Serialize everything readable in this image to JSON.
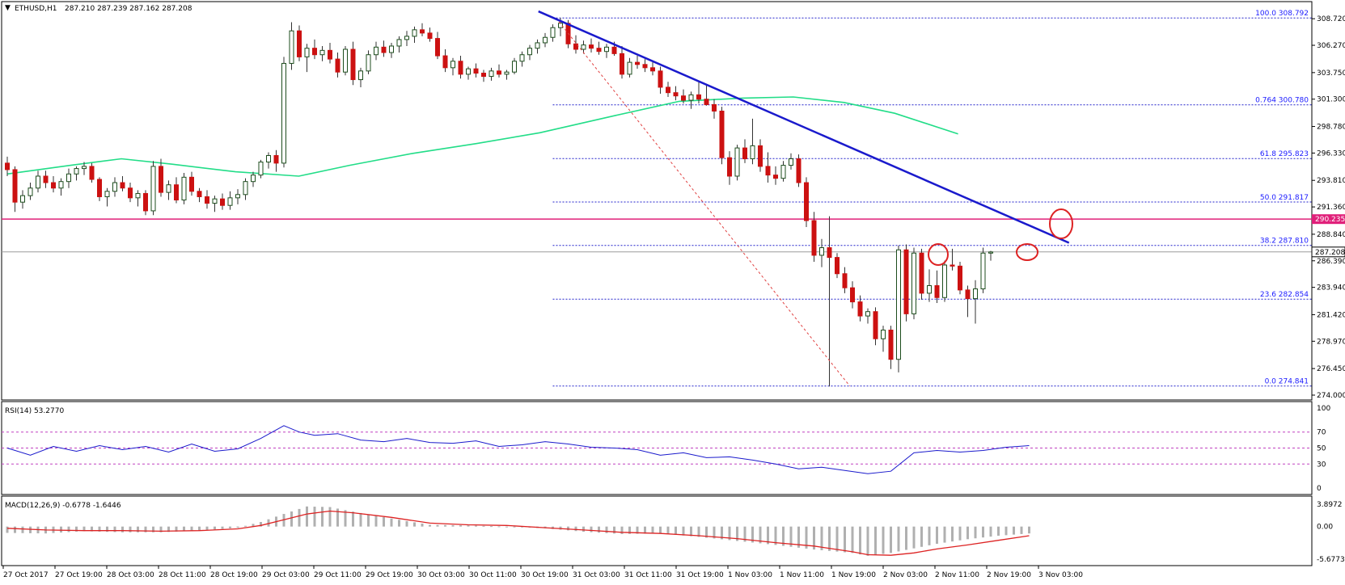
{
  "header": {
    "symbol_timeframe": "ETHUSD,H1",
    "ohlc": "287.210 287.239 287.162 287.208"
  },
  "price_axis": {
    "ticks": [
      "308.720",
      "306.270",
      "303.750",
      "301.300",
      "298.780",
      "296.330",
      "293.810",
      "291.360",
      "288.840",
      "286.390",
      "283.940",
      "281.420",
      "278.970",
      "276.450",
      "274.000"
    ],
    "current_price": "287.208",
    "resistance_price": "290.235"
  },
  "time_axis": [
    "27 Oct 2017",
    "27 Oct 19:00",
    "28 Oct 03:00",
    "28 Oct 11:00",
    "28 Oct 19:00",
    "29 Oct 03:00",
    "29 Oct 11:00",
    "29 Oct 19:00",
    "30 Oct 03:00",
    "30 Oct 11:00",
    "30 Oct 19:00",
    "31 Oct 03:00",
    "31 Oct 11:00",
    "31 Oct 19:00",
    "1 Nov 03:00",
    "1 Nov 11:00",
    "1 Nov 19:00",
    "2 Nov 03:00",
    "2 Nov 11:00",
    "2 Nov 19:00",
    "3 Nov 03:00"
  ],
  "fib_levels": [
    {
      "label": "100.0",
      "value": "308.792"
    },
    {
      "label": "0.764",
      "value": "300.780"
    },
    {
      "label": "61.8",
      "value": "295.823"
    },
    {
      "label": "50.0",
      "value": "291.817"
    },
    {
      "label": "38.2",
      "value": "287.810"
    },
    {
      "label": "23.6",
      "value": "282.854"
    },
    {
      "label": "0.0",
      "value": "274.841"
    }
  ],
  "rsi": {
    "label": "RSI(14) 53.2770",
    "ticks": [
      "100",
      "70",
      "50",
      "30",
      "0"
    ]
  },
  "macd": {
    "label": "MACD(12,26,9) -0.6778 -1.6446",
    "ticks": [
      "3.8972",
      "0.00",
      "-5.6773"
    ]
  },
  "colors": {
    "bull": "#2e6b2e",
    "bear": "#cc1111",
    "ma": "#22dd88",
    "trendline": "#1a1acc",
    "fib": "#2222cc",
    "resistance": "#e0207a",
    "circle": "#dd2222",
    "rsi_line": "#1a1acc",
    "macd_signal": "#dd2222",
    "macd_hist": "#b0b0b0"
  },
  "chart_data": {
    "type": "candlestick",
    "main": {
      "ylim": [
        274.0,
        310.0
      ],
      "resistance": 290.235,
      "current": 287.208,
      "trendline": {
        "from": [
          31,
          309.4
        ],
        "to": [
          98,
          288.05
        ]
      },
      "fib_dashed": {
        "from": [
          34,
          308.792
        ],
        "to": [
          51,
          274.841
        ]
      },
      "highlight_circles": [
        {
          "x": 62.5,
          "y": 290.1
        },
        {
          "x": 55,
          "y": 287.8
        },
        {
          "x": 74,
          "y": 287.8
        }
      ],
      "ma_x": [
        0,
        5,
        9,
        13,
        18,
        23,
        27,
        32,
        37,
        42,
        48,
        53,
        58,
        62,
        66,
        70,
        75
      ],
      "ma_y": [
        294.4,
        295.2,
        295.8,
        295.3,
        294.6,
        294.2,
        295.2,
        296.3,
        297.2,
        298.2,
        299.8,
        301.1,
        301.4,
        301.5,
        301.0,
        300.0,
        298.1
      ],
      "candles": [
        [
          295.4,
          296.0,
          294.2,
          294.8
        ],
        [
          294.8,
          295.1,
          290.9,
          291.8
        ],
        [
          291.8,
          292.9,
          291.2,
          292.4
        ],
        [
          292.4,
          293.6,
          292.0,
          293.1
        ],
        [
          293.1,
          294.7,
          292.7,
          294.2
        ],
        [
          294.2,
          294.7,
          293.1,
          293.6
        ],
        [
          293.6,
          294.2,
          292.7,
          293.1
        ],
        [
          293.1,
          294.0,
          292.4,
          293.7
        ],
        [
          293.7,
          294.9,
          293.1,
          294.4
        ],
        [
          294.4,
          295.1,
          293.8,
          294.9
        ],
        [
          294.9,
          295.5,
          294.3,
          295.1
        ],
        [
          295.1,
          295.4,
          293.6,
          293.9
        ],
        [
          293.9,
          294.1,
          291.9,
          292.3
        ],
        [
          292.3,
          293.1,
          291.4,
          292.8
        ],
        [
          292.8,
          294.1,
          292.3,
          293.6
        ],
        [
          293.6,
          294.2,
          292.8,
          293.1
        ],
        [
          293.1,
          293.6,
          291.8,
          292.2
        ],
        [
          292.2,
          292.9,
          291.4,
          292.6
        ],
        [
          292.6,
          292.9,
          290.6,
          291.0
        ],
        [
          291.0,
          295.6,
          290.6,
          295.1
        ],
        [
          295.1,
          295.8,
          292.3,
          292.7
        ],
        [
          292.7,
          293.8,
          292.0,
          293.4
        ],
        [
          293.4,
          294.1,
          291.7,
          292.0
        ],
        [
          292.0,
          294.5,
          291.6,
          294.1
        ],
        [
          294.1,
          294.6,
          292.4,
          292.8
        ],
        [
          292.8,
          293.1,
          291.8,
          292.3
        ],
        [
          292.3,
          292.9,
          291.2,
          291.7
        ],
        [
          291.7,
          292.4,
          290.9,
          292.1
        ],
        [
          292.1,
          292.6,
          291.1,
          291.5
        ],
        [
          291.5,
          292.8,
          291.1,
          292.2
        ],
        [
          292.2,
          293.0,
          291.6,
          292.5
        ],
        [
          292.5,
          294.0,
          292.0,
          293.7
        ],
        [
          293.7,
          294.6,
          293.2,
          294.3
        ],
        [
          294.3,
          295.7,
          294.0,
          295.5
        ],
        [
          295.5,
          296.4,
          294.9,
          296.1
        ],
        [
          296.1,
          296.6,
          294.6,
          295.4
        ],
        [
          295.4,
          305.2,
          295.0,
          304.6
        ],
        [
          304.6,
          308.4,
          304.0,
          307.6
        ],
        [
          307.6,
          308.1,
          304.8,
          305.2
        ],
        [
          305.2,
          306.4,
          303.8,
          306.0
        ],
        [
          306.0,
          306.8,
          305.0,
          305.4
        ],
        [
          305.4,
          306.2,
          304.8,
          305.8
        ],
        [
          305.8,
          306.5,
          304.6,
          305.0
        ],
        [
          305.0,
          305.6,
          303.3,
          303.8
        ],
        [
          303.8,
          306.2,
          303.5,
          305.9
        ],
        [
          305.9,
          306.6,
          302.6,
          303.1
        ],
        [
          303.1,
          304.2,
          302.4,
          303.9
        ],
        [
          303.9,
          305.8,
          303.6,
          305.4
        ],
        [
          305.4,
          306.6,
          304.9,
          306.1
        ],
        [
          306.1,
          306.7,
          305.2,
          305.6
        ],
        [
          305.6,
          306.5,
          305.1,
          306.2
        ],
        [
          306.2,
          307.1,
          305.6,
          306.8
        ],
        [
          306.8,
          307.6,
          306.2,
          307.1
        ],
        [
          307.1,
          308.0,
          306.5,
          307.7
        ],
        [
          307.7,
          308.3,
          307.1,
          307.4
        ],
        [
          307.4,
          307.9,
          306.6,
          306.9
        ],
        [
          306.9,
          307.5,
          305.0,
          305.3
        ],
        [
          305.3,
          305.9,
          303.8,
          304.2
        ],
        [
          304.2,
          305.1,
          303.5,
          304.8
        ],
        [
          304.8,
          305.3,
          303.2,
          303.6
        ],
        [
          303.6,
          304.3,
          303.1,
          304.1
        ],
        [
          304.1,
          304.6,
          303.3,
          303.7
        ],
        [
          303.7,
          304.0,
          302.9,
          303.4
        ],
        [
          303.4,
          304.2,
          303.0,
          303.9
        ],
        [
          303.9,
          304.5,
          303.3,
          303.6
        ],
        [
          303.6,
          304.0,
          303.1,
          303.8
        ],
        [
          303.8,
          305.1,
          303.6,
          304.8
        ],
        [
          304.8,
          305.7,
          304.3,
          305.4
        ],
        [
          305.4,
          306.3,
          304.9,
          306.0
        ],
        [
          306.0,
          306.8,
          305.5,
          306.5
        ],
        [
          306.5,
          307.4,
          306.1,
          307.0
        ],
        [
          307.0,
          308.2,
          306.6,
          307.9
        ],
        [
          307.9,
          308.8,
          307.1,
          308.3
        ],
        [
          308.3,
          308.6,
          306.0,
          306.4
        ],
        [
          306.4,
          307.2,
          305.5,
          305.9
        ],
        [
          305.9,
          306.7,
          305.5,
          306.3
        ],
        [
          306.3,
          306.9,
          305.6,
          306.0
        ],
        [
          306.0,
          306.6,
          305.4,
          305.7
        ],
        [
          305.7,
          306.4,
          305.1,
          306.1
        ],
        [
          306.1,
          306.6,
          305.3,
          305.5
        ],
        [
          305.5,
          306.2,
          303.2,
          303.6
        ],
        [
          303.6,
          305.1,
          303.3,
          304.7
        ],
        [
          304.7,
          305.3,
          304.1,
          304.5
        ],
        [
          304.5,
          305.0,
          303.8,
          304.2
        ],
        [
          304.2,
          304.7,
          303.5,
          303.9
        ],
        [
          303.9,
          304.3,
          301.8,
          302.4
        ],
        [
          302.4,
          302.9,
          301.5,
          301.9
        ],
        [
          301.9,
          302.5,
          301.2,
          301.6
        ],
        [
          301.6,
          302.2,
          300.9,
          301.2
        ],
        [
          301.2,
          302.0,
          300.4,
          301.7
        ],
        [
          301.7,
          302.9,
          300.9,
          301.3
        ],
        [
          301.3,
          302.6,
          300.7,
          300.8
        ],
        [
          300.8,
          301.3,
          299.5,
          300.2
        ],
        [
          300.2,
          300.6,
          295.3,
          295.9
        ],
        [
          295.9,
          296.5,
          293.4,
          294.2
        ],
        [
          294.2,
          297.1,
          293.8,
          296.8
        ],
        [
          296.8,
          297.6,
          295.4,
          295.8
        ],
        [
          295.8,
          299.5,
          295.3,
          297.0
        ],
        [
          297.0,
          297.6,
          294.6,
          295.1
        ],
        [
          295.1,
          296.4,
          293.6,
          294.3
        ],
        [
          294.3,
          295.1,
          293.4,
          294.0
        ],
        [
          294.0,
          295.6,
          293.7,
          295.2
        ],
        [
          295.2,
          296.3,
          294.8,
          295.8
        ],
        [
          295.8,
          296.2,
          293.2,
          293.6
        ],
        [
          293.6,
          294.1,
          289.5,
          290.1
        ],
        [
          290.1,
          290.9,
          286.3,
          286.9
        ],
        [
          286.9,
          288.4,
          285.8,
          287.6
        ],
        [
          287.6,
          290.5,
          274.8,
          286.7
        ],
        [
          286.7,
          287.1,
          284.8,
          285.2
        ],
        [
          285.2,
          285.8,
          283.4,
          283.9
        ],
        [
          283.9,
          284.5,
          282.0,
          282.6
        ],
        [
          282.6,
          283.2,
          280.8,
          281.3
        ],
        [
          281.3,
          282.0,
          280.6,
          281.7
        ],
        [
          281.7,
          282.1,
          278.6,
          279.2
        ],
        [
          279.2,
          280.4,
          278.0,
          280.0
        ],
        [
          280.0,
          280.4,
          276.4,
          277.3
        ],
        [
          277.3,
          287.8,
          276.1,
          287.4
        ],
        [
          287.4,
          287.9,
          280.8,
          281.5
        ],
        [
          281.5,
          287.6,
          281.0,
          287.1
        ],
        [
          287.1,
          287.5,
          282.8,
          283.4
        ],
        [
          283.4,
          285.6,
          282.6,
          284.1
        ],
        [
          284.1,
          285.5,
          282.5,
          283.0
        ],
        [
          283.0,
          286.4,
          282.6,
          286.0
        ],
        [
          286.0,
          287.5,
          285.5,
          285.9
        ],
        [
          285.9,
          286.3,
          283.3,
          283.7
        ],
        [
          283.7,
          284.1,
          281.2,
          282.9
        ],
        [
          282.9,
          284.6,
          280.6,
          283.8
        ],
        [
          283.8,
          287.6,
          283.4,
          287.1
        ],
        [
          287.1,
          287.3,
          286.4,
          287.2
        ]
      ]
    },
    "rsi": {
      "ylim": [
        0,
        100
      ],
      "levels": [
        70,
        50,
        30
      ],
      "x": [
        0,
        3,
        6,
        9,
        12,
        15,
        18,
        21,
        24,
        27,
        30,
        33,
        36,
        38,
        40,
        43,
        46,
        49,
        52,
        55,
        58,
        61,
        64,
        67,
        70,
        73,
        76,
        79,
        82,
        85,
        88,
        91,
        94,
        97,
        100,
        103,
        106,
        109,
        112,
        115,
        118,
        121,
        124,
        127,
        130,
        133
      ],
      "values": [
        50,
        41,
        52,
        46,
        53,
        48,
        52,
        45,
        55,
        46,
        49,
        62,
        78,
        70,
        66,
        68,
        60,
        58,
        62,
        57,
        56,
        59,
        52,
        54,
        58,
        55,
        51,
        50,
        48,
        41,
        44,
        38,
        39,
        35,
        30,
        24,
        26,
        22,
        18,
        21,
        44,
        47,
        45,
        47,
        51,
        53
      ]
    },
    "macd": {
      "ylim": [
        -5.6773,
        3.8972
      ],
      "x": [
        0,
        5,
        10,
        15,
        20,
        25,
        30,
        33,
        36,
        39,
        42,
        45,
        50,
        55,
        60,
        65,
        70,
        75,
        80,
        85,
        90,
        95,
        100,
        105,
        110,
        112,
        115,
        118,
        121,
        125,
        129,
        133
      ],
      "histogram": [
        -1.1,
        -1.2,
        -0.8,
        -1.0,
        -1.0,
        -0.7,
        -0.2,
        0.8,
        2.2,
        3.5,
        3.4,
        2.6,
        1.4,
        0.3,
        0.2,
        0.0,
        -0.3,
        -0.9,
        -1.3,
        -1.2,
        -1.8,
        -2.5,
        -3.2,
        -4.0,
        -4.6,
        -5.1,
        -4.6,
        -3.8,
        -3.0,
        -2.2,
        -1.6,
        -1.2
      ],
      "signal": [
        -0.3,
        -0.6,
        -0.7,
        -0.7,
        -0.8,
        -0.7,
        -0.4,
        0.2,
        1.2,
        2.2,
        2.7,
        2.4,
        1.6,
        0.6,
        0.3,
        0.2,
        -0.2,
        -0.6,
        -1.0,
        -1.2,
        -1.6,
        -2.1,
        -2.8,
        -3.4,
        -4.4,
        -4.9,
        -5.0,
        -4.6,
        -3.9,
        -3.2,
        -2.4,
        -1.6
      ]
    }
  }
}
